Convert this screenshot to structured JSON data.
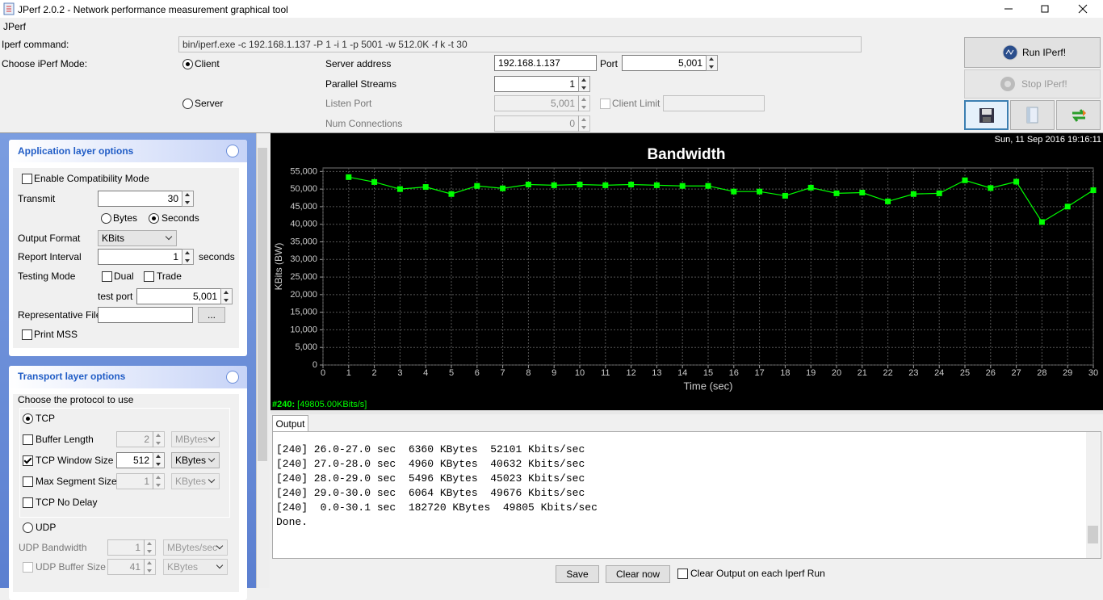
{
  "window": {
    "title": "JPerf 2.0.2 - Network performance measurement graphical tool",
    "menu": "JPerf"
  },
  "command": {
    "label": "Iperf command:",
    "value": "bin/iperf.exe -c 192.168.1.137 -P 1 -i 1 -p 5001 -w 512.0K -f k -t 30"
  },
  "mode": {
    "label": "Choose iPerf Mode:",
    "client": "Client",
    "server": "Server",
    "server_address_label": "Server address",
    "server_address": "192.168.1.137",
    "port_label": "Port",
    "port": "5,001",
    "parallel_label": "Parallel Streams",
    "parallel": "1",
    "listen_port_label": "Listen Port",
    "listen_port": "5,001",
    "client_limit_label": "Client Limit",
    "num_connections_label": "Num Connections",
    "num_connections": "0"
  },
  "buttons": {
    "run": "Run IPerf!",
    "stop": "Stop IPerf!"
  },
  "app_layer": {
    "title": "Application layer options",
    "compat": "Enable Compatibility Mode",
    "transmit_label": "Transmit",
    "transmit": "30",
    "bytes": "Bytes",
    "seconds": "Seconds",
    "output_format_label": "Output Format",
    "output_format": "KBits",
    "report_interval_label": "Report Interval",
    "report_interval": "1",
    "report_interval_unit": "seconds",
    "testing_mode_label": "Testing Mode",
    "dual": "Dual",
    "trade": "Trade",
    "test_port_label": "test port",
    "test_port": "5,001",
    "rep_file_label": "Representative File",
    "browse": "...",
    "print_mss": "Print MSS"
  },
  "transport_layer": {
    "title": "Transport layer options",
    "choose": "Choose the protocol to use",
    "tcp": "TCP",
    "buffer_length": "Buffer Length",
    "buffer_length_value": "2",
    "buffer_length_unit": "MBytes",
    "tcp_window": "TCP Window Size",
    "tcp_window_value": "512",
    "tcp_window_unit": "KBytes",
    "max_segment": "Max Segment Size",
    "max_segment_value": "1",
    "max_segment_unit": "KBytes",
    "no_delay": "TCP No Delay",
    "udp": "UDP",
    "udp_bandwidth": "UDP Bandwidth",
    "udp_bandwidth_value": "1",
    "udp_bandwidth_unit": "MBytes/sec",
    "udp_buffer": "UDP Buffer Size",
    "udp_buffer_value": "41",
    "udp_buffer_unit": "KBytes"
  },
  "chart_data": {
    "type": "line",
    "title": "Bandwidth",
    "timestamp": "Sun, 11 Sep 2016 19:16:11",
    "x_label": "Time (sec)",
    "y_label": "KBits (BW)",
    "x": [
      1,
      2,
      3,
      4,
      5,
      6,
      7,
      8,
      9,
      10,
      11,
      12,
      13,
      14,
      15,
      16,
      17,
      18,
      19,
      20,
      21,
      22,
      23,
      24,
      25,
      26,
      27,
      28,
      29,
      30
    ],
    "series": [
      {
        "name": "#240:",
        "summary": "[49805.00KBits/s]",
        "color": "#00ff00",
        "values": [
          53400,
          52000,
          50000,
          50600,
          48600,
          50900,
          50200,
          51300,
          51100,
          51300,
          51100,
          51300,
          51100,
          50900,
          50900,
          49300,
          49300,
          48100,
          50400,
          48800,
          49000,
          46500,
          48600,
          48800,
          52500,
          50300,
          52101,
          40632,
          45023,
          49676
        ]
      }
    ],
    "xlim": [
      0,
      30
    ],
    "ylim": [
      0,
      56000
    ],
    "xticks": [
      0,
      1,
      2,
      3,
      4,
      5,
      6,
      7,
      8,
      9,
      10,
      11,
      12,
      13,
      14,
      15,
      16,
      17,
      18,
      19,
      20,
      21,
      22,
      23,
      24,
      25,
      26,
      27,
      28,
      29,
      30
    ],
    "yticks": [
      0,
      {
        "value": 5000,
        "label": "5,000"
      },
      {
        "value": 10000,
        "label": "10,000"
      },
      {
        "value": 15000,
        "label": "15,000"
      },
      {
        "value": 20000,
        "label": "20,000"
      },
      {
        "value": 25000,
        "label": "25,000"
      },
      {
        "value": 30000,
        "label": "30,000"
      },
      {
        "value": 35000,
        "label": "35,000"
      },
      {
        "value": 40000,
        "label": "40,000"
      },
      {
        "value": 45000,
        "label": "45,000"
      },
      {
        "value": 50000,
        "label": "50,000"
      },
      {
        "value": 55000,
        "label": "55,000"
      }
    ],
    "grid": true,
    "background": "#000000"
  },
  "output": {
    "tab": "Output",
    "lines": [
      "[240] 26.0-27.0 sec  6360 KBytes  52101 Kbits/sec",
      "[240] 27.0-28.0 sec  4960 KBytes  40632 Kbits/sec",
      "[240] 28.0-29.0 sec  5496 KBytes  45023 Kbits/sec",
      "[240] 29.0-30.0 sec  6064 KBytes  49676 Kbits/sec",
      "[240]  0.0-30.1 sec  182720 KBytes  49805 Kbits/sec",
      "Done."
    ],
    "save": "Save",
    "clear": "Clear now",
    "clear_each": "Clear Output on each Iperf Run"
  }
}
